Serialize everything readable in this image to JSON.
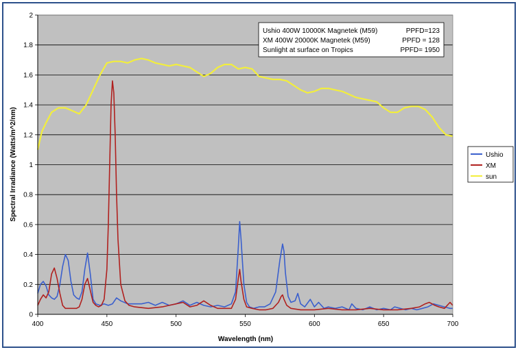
{
  "chart_data": {
    "type": "line",
    "title": "",
    "xlabel": "Wavelength (nm)",
    "ylabel": "Spectral Irradiance (Watts/m^2/nm)",
    "xlim": [
      400,
      700
    ],
    "ylim": [
      0,
      2
    ],
    "x_ticks": [
      "400",
      "450",
      "500",
      "550",
      "600",
      "650",
      "700"
    ],
    "y_ticks": [
      "0",
      "0.2",
      "0.4",
      "0.6",
      "0.8",
      "1",
      "1.2",
      "1.4",
      "1.6",
      "1.8",
      "2"
    ],
    "grid": true,
    "plot_background": "#c0c0c0",
    "legend": {
      "position": "right",
      "entries": [
        {
          "label": "Ushio",
          "color": "#3a5fcd"
        },
        {
          "label": "XM",
          "color": "#b0201e"
        },
        {
          "label": "sun",
          "color": "#f2ee3c"
        }
      ]
    },
    "annotation": {
      "rows": [
        {
          "left": "Ushio 400W 10000K Magnetek (M59)",
          "right": "PPFD=123"
        },
        {
          "left": "XM 400W 20000K Magnetek (M59)",
          "right": "PPFD = 128"
        },
        {
          "left": "Sunlight at surface on Tropics",
          "right": "PPFD= 1950"
        }
      ]
    },
    "series": [
      {
        "name": "Ushio",
        "color": "#3a5fcd",
        "x": [
          400,
          402,
          404,
          406,
          408,
          410,
          412,
          414,
          416,
          418,
          420,
          422,
          424,
          426,
          428,
          430,
          432,
          434,
          436,
          438,
          440,
          442,
          445,
          448,
          451,
          454,
          457,
          460,
          465,
          470,
          475,
          480,
          485,
          490,
          495,
          500,
          505,
          510,
          515,
          520,
          525,
          530,
          535,
          540,
          543,
          545,
          546,
          547,
          549,
          551,
          553,
          556,
          560,
          564,
          568,
          572,
          575,
          577,
          578,
          579,
          581,
          583,
          586,
          588,
          590,
          593,
          597,
          600,
          603,
          607,
          610,
          615,
          620,
          625,
          627,
          630,
          635,
          640,
          645,
          650,
          655,
          658,
          662,
          666,
          670,
          674,
          678,
          682,
          686,
          690,
          694,
          698,
          700
        ],
        "y": [
          0.14,
          0.2,
          0.22,
          0.19,
          0.13,
          0.11,
          0.1,
          0.12,
          0.2,
          0.32,
          0.4,
          0.36,
          0.22,
          0.13,
          0.11,
          0.1,
          0.15,
          0.3,
          0.41,
          0.27,
          0.1,
          0.07,
          0.06,
          0.07,
          0.06,
          0.07,
          0.11,
          0.09,
          0.07,
          0.07,
          0.07,
          0.08,
          0.06,
          0.08,
          0.06,
          0.07,
          0.09,
          0.06,
          0.08,
          0.06,
          0.05,
          0.06,
          0.05,
          0.07,
          0.15,
          0.45,
          0.62,
          0.5,
          0.2,
          0.08,
          0.05,
          0.04,
          0.05,
          0.05,
          0.07,
          0.15,
          0.36,
          0.47,
          0.42,
          0.28,
          0.12,
          0.08,
          0.09,
          0.14,
          0.07,
          0.05,
          0.1,
          0.05,
          0.08,
          0.04,
          0.05,
          0.04,
          0.05,
          0.03,
          0.07,
          0.04,
          0.03,
          0.05,
          0.03,
          0.04,
          0.03,
          0.05,
          0.04,
          0.03,
          0.04,
          0.03,
          0.04,
          0.05,
          0.07,
          0.06,
          0.05,
          0.04,
          0.04
        ]
      },
      {
        "name": "XM",
        "color": "#b0201e",
        "x": [
          400,
          402,
          404,
          406,
          408,
          410,
          412,
          414,
          416,
          418,
          420,
          424,
          428,
          430,
          432,
          434,
          436,
          438,
          440,
          442,
          444,
          446,
          448,
          450,
          451,
          452,
          453,
          454,
          455,
          456,
          457,
          458,
          460,
          463,
          466,
          470,
          480,
          490,
          495,
          500,
          505,
          510,
          515,
          520,
          525,
          530,
          535,
          540,
          543,
          545,
          546,
          547,
          549,
          551,
          555,
          560,
          565,
          570,
          574,
          576,
          577,
          578,
          580,
          583,
          590,
          600,
          610,
          620,
          630,
          640,
          650,
          660,
          670,
          676,
          680,
          683,
          685,
          687,
          690,
          694,
          696,
          698,
          700
        ],
        "y": [
          0.06,
          0.1,
          0.13,
          0.11,
          0.15,
          0.27,
          0.31,
          0.24,
          0.14,
          0.06,
          0.04,
          0.04,
          0.04,
          0.05,
          0.1,
          0.2,
          0.24,
          0.16,
          0.08,
          0.06,
          0.05,
          0.06,
          0.1,
          0.3,
          0.6,
          1.0,
          1.4,
          1.56,
          1.48,
          1.2,
          0.8,
          0.5,
          0.2,
          0.09,
          0.06,
          0.05,
          0.04,
          0.05,
          0.06,
          0.07,
          0.08,
          0.05,
          0.06,
          0.09,
          0.06,
          0.04,
          0.04,
          0.04,
          0.1,
          0.24,
          0.3,
          0.22,
          0.1,
          0.05,
          0.04,
          0.03,
          0.03,
          0.04,
          0.08,
          0.12,
          0.13,
          0.1,
          0.06,
          0.04,
          0.03,
          0.03,
          0.04,
          0.03,
          0.03,
          0.04,
          0.03,
          0.03,
          0.04,
          0.05,
          0.07,
          0.08,
          0.07,
          0.06,
          0.05,
          0.04,
          0.06,
          0.08,
          0.06
        ]
      },
      {
        "name": "sun",
        "color": "#f2ee3c",
        "x": [
          400,
          403,
          406,
          410,
          415,
          420,
          425,
          430,
          435,
          440,
          445,
          450,
          455,
          460,
          465,
          470,
          475,
          480,
          485,
          490,
          495,
          500,
          505,
          510,
          515,
          520,
          525,
          530,
          535,
          540,
          545,
          550,
          555,
          560,
          565,
          570,
          575,
          580,
          585,
          590,
          595,
          600,
          605,
          610,
          615,
          620,
          625,
          630,
          635,
          640,
          645,
          650,
          655,
          660,
          665,
          670,
          675,
          680,
          685,
          690,
          695,
          700
        ],
        "y": [
          1.1,
          1.22,
          1.28,
          1.35,
          1.38,
          1.38,
          1.36,
          1.34,
          1.4,
          1.5,
          1.6,
          1.68,
          1.69,
          1.69,
          1.68,
          1.7,
          1.71,
          1.7,
          1.68,
          1.67,
          1.66,
          1.67,
          1.66,
          1.65,
          1.62,
          1.59,
          1.61,
          1.65,
          1.67,
          1.67,
          1.64,
          1.65,
          1.64,
          1.59,
          1.58,
          1.57,
          1.57,
          1.56,
          1.53,
          1.5,
          1.48,
          1.49,
          1.51,
          1.51,
          1.5,
          1.49,
          1.47,
          1.45,
          1.44,
          1.43,
          1.42,
          1.38,
          1.35,
          1.35,
          1.38,
          1.39,
          1.39,
          1.37,
          1.32,
          1.25,
          1.2,
          1.19
        ]
      }
    ]
  }
}
